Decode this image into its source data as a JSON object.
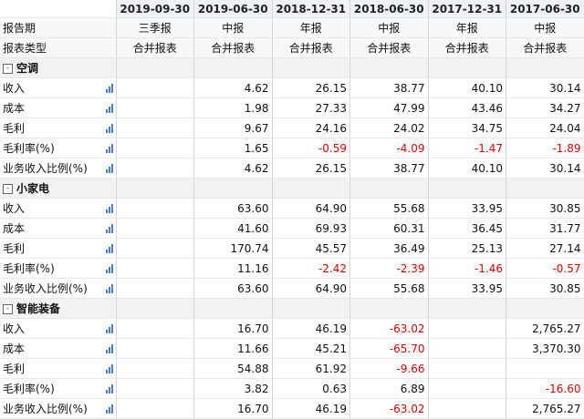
{
  "header": {
    "corner": "",
    "dates": [
      "2019-09-30",
      "2019-06-30",
      "2018-12-31",
      "2018-06-30",
      "2017-12-31",
      "2017-06-30"
    ]
  },
  "report_period": {
    "label": "报告期",
    "values": [
      "三季报",
      "中报",
      "年报",
      "中报",
      "年报",
      "中报"
    ]
  },
  "report_type": {
    "label": "报表类型",
    "values": [
      "合并报表",
      "合并报表",
      "合并报表",
      "合并报表",
      "合并报表",
      "合并报表"
    ]
  },
  "sections": [
    {
      "title": "空调",
      "toggle": "-",
      "rows": [
        {
          "label": "收入",
          "values": [
            "",
            "4.62",
            "26.15",
            "38.77",
            "40.10",
            "30.14"
          ]
        },
        {
          "label": "成本",
          "values": [
            "",
            "1.98",
            "27.33",
            "47.99",
            "43.46",
            "34.27"
          ]
        },
        {
          "label": "毛利",
          "values": [
            "",
            "9.67",
            "24.16",
            "24.02",
            "34.75",
            "24.04"
          ]
        },
        {
          "label": "毛利率(%)",
          "values": [
            "",
            "1.65",
            "-0.59",
            "-4.09",
            "-1.47",
            "-1.89"
          ]
        },
        {
          "label": "业务收入比例(%)",
          "values": [
            "",
            "4.62",
            "26.15",
            "38.77",
            "40.10",
            "30.14"
          ]
        }
      ]
    },
    {
      "title": "小家电",
      "toggle": "-",
      "rows": [
        {
          "label": "收入",
          "values": [
            "",
            "63.60",
            "64.90",
            "55.68",
            "33.95",
            "30.85"
          ]
        },
        {
          "label": "成本",
          "values": [
            "",
            "41.60",
            "69.93",
            "60.31",
            "36.45",
            "31.77"
          ]
        },
        {
          "label": "毛利",
          "values": [
            "",
            "170.74",
            "45.57",
            "36.49",
            "25.13",
            "27.14"
          ]
        },
        {
          "label": "毛利率(%)",
          "values": [
            "",
            "11.16",
            "-2.42",
            "-2.39",
            "-1.46",
            "-0.57"
          ]
        },
        {
          "label": "业务收入比例(%)",
          "values": [
            "",
            "63.60",
            "64.90",
            "55.68",
            "33.95",
            "30.85"
          ]
        }
      ]
    },
    {
      "title": "智能装备",
      "toggle": "-",
      "rows": [
        {
          "label": "收入",
          "values": [
            "",
            "16.70",
            "46.19",
            "-63.02",
            "",
            "2,765.27"
          ]
        },
        {
          "label": "成本",
          "values": [
            "",
            "11.66",
            "45.21",
            "-65.70",
            "",
            "3,370.30"
          ]
        },
        {
          "label": "毛利",
          "values": [
            "",
            "54.88",
            "61.92",
            "-9.66",
            "",
            ""
          ]
        },
        {
          "label": "毛利率(%)",
          "values": [
            "",
            "3.82",
            "0.63",
            "6.89",
            "",
            "-16.60"
          ]
        },
        {
          "label": "业务收入比例(%)",
          "values": [
            "",
            "16.70",
            "46.19",
            "-63.02",
            "",
            "2,765.27"
          ]
        }
      ]
    }
  ],
  "icons": {
    "row_chart": "bar-chart-icon",
    "collapse": "collapse-icon"
  },
  "colors": {
    "negative": "#e00000",
    "header_bg": "#eef1f6",
    "accent": "#4a7fd0"
  }
}
